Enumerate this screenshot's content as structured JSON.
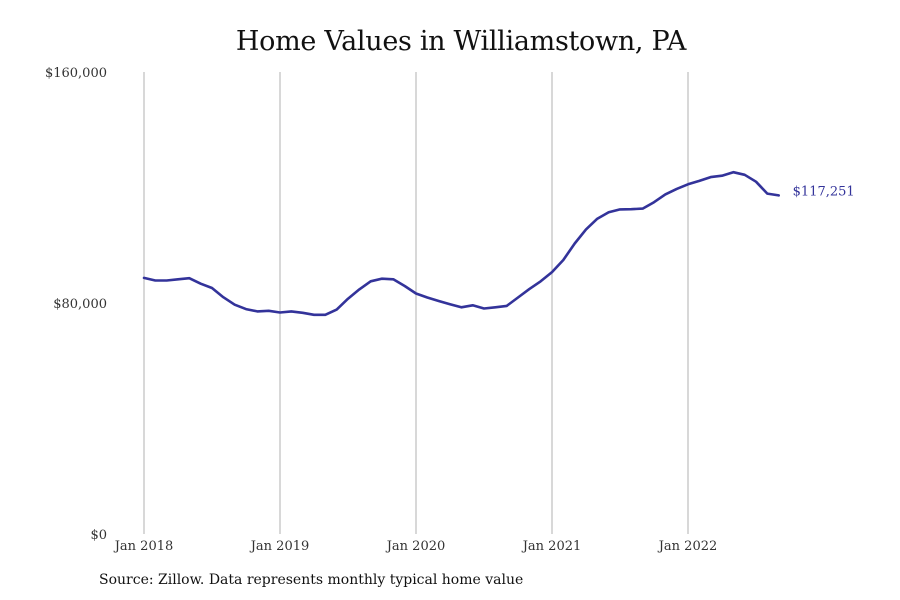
{
  "chart_data": {
    "type": "line",
    "title": "Home Values in Williamstown, PA",
    "xlabel": "",
    "ylabel": "",
    "source_note": "Source: Zillow. Data represents monthly typical home value",
    "ylim": [
      0,
      160000
    ],
    "y_ticks": [
      {
        "value": 0,
        "label": "$0"
      },
      {
        "value": 80000,
        "label": "$80,000"
      },
      {
        "value": 160000,
        "label": "$160,000"
      }
    ],
    "x_ticks": [
      {
        "x": "2018-01",
        "label": "Jan 2018"
      },
      {
        "x": "2019-01",
        "label": "Jan 2019"
      },
      {
        "x": "2020-01",
        "label": "Jan 2020"
      },
      {
        "x": "2021-01",
        "label": "Jan 2021"
      },
      {
        "x": "2022-01",
        "label": "Jan 2022"
      }
    ],
    "x_range": [
      "2018-01",
      "2022-09"
    ],
    "grid": "vertical lines at year ticks",
    "line_color": "#33339a",
    "end_label": "$117,251",
    "series": [
      {
        "x": [
          "2018-01",
          "2018-02",
          "2018-03",
          "2018-04",
          "2018-05",
          "2018-06",
          "2018-07",
          "2018-08",
          "2018-09",
          "2018-10",
          "2018-11",
          "2018-12",
          "2019-01",
          "2019-02",
          "2019-03",
          "2019-04",
          "2019-05",
          "2019-06",
          "2019-07",
          "2019-08",
          "2019-09",
          "2019-10",
          "2019-11",
          "2019-12",
          "2020-01",
          "2020-02",
          "2020-03",
          "2020-04",
          "2020-05",
          "2020-06",
          "2020-07",
          "2020-08",
          "2020-09",
          "2020-10",
          "2020-11",
          "2020-12",
          "2021-01",
          "2021-02",
          "2021-03",
          "2021-04",
          "2021-05",
          "2021-06",
          "2021-07",
          "2021-08",
          "2021-09",
          "2021-10",
          "2021-11",
          "2021-12",
          "2022-01",
          "2022-02",
          "2022-03",
          "2022-04",
          "2022-05",
          "2022-06",
          "2022-07",
          "2022-08",
          "2022-09"
        ],
        "values": [
          88700,
          87800,
          87800,
          88200,
          88600,
          86700,
          85200,
          82000,
          79400,
          77900,
          77100,
          77300,
          76700,
          77100,
          76600,
          75900,
          75900,
          77700,
          81500,
          84700,
          87500,
          88400,
          88200,
          85900,
          83300,
          81900,
          80700,
          79600,
          78500,
          79200,
          78100,
          78500,
          79000,
          81900,
          84800,
          87500,
          90700,
          94900,
          100600,
          105500,
          109200,
          111400,
          112400,
          112500,
          112700,
          114900,
          117600,
          119500,
          121100,
          122300,
          123600,
          124100,
          125300,
          124400,
          122000,
          117900,
          117251
        ]
      }
    ]
  }
}
